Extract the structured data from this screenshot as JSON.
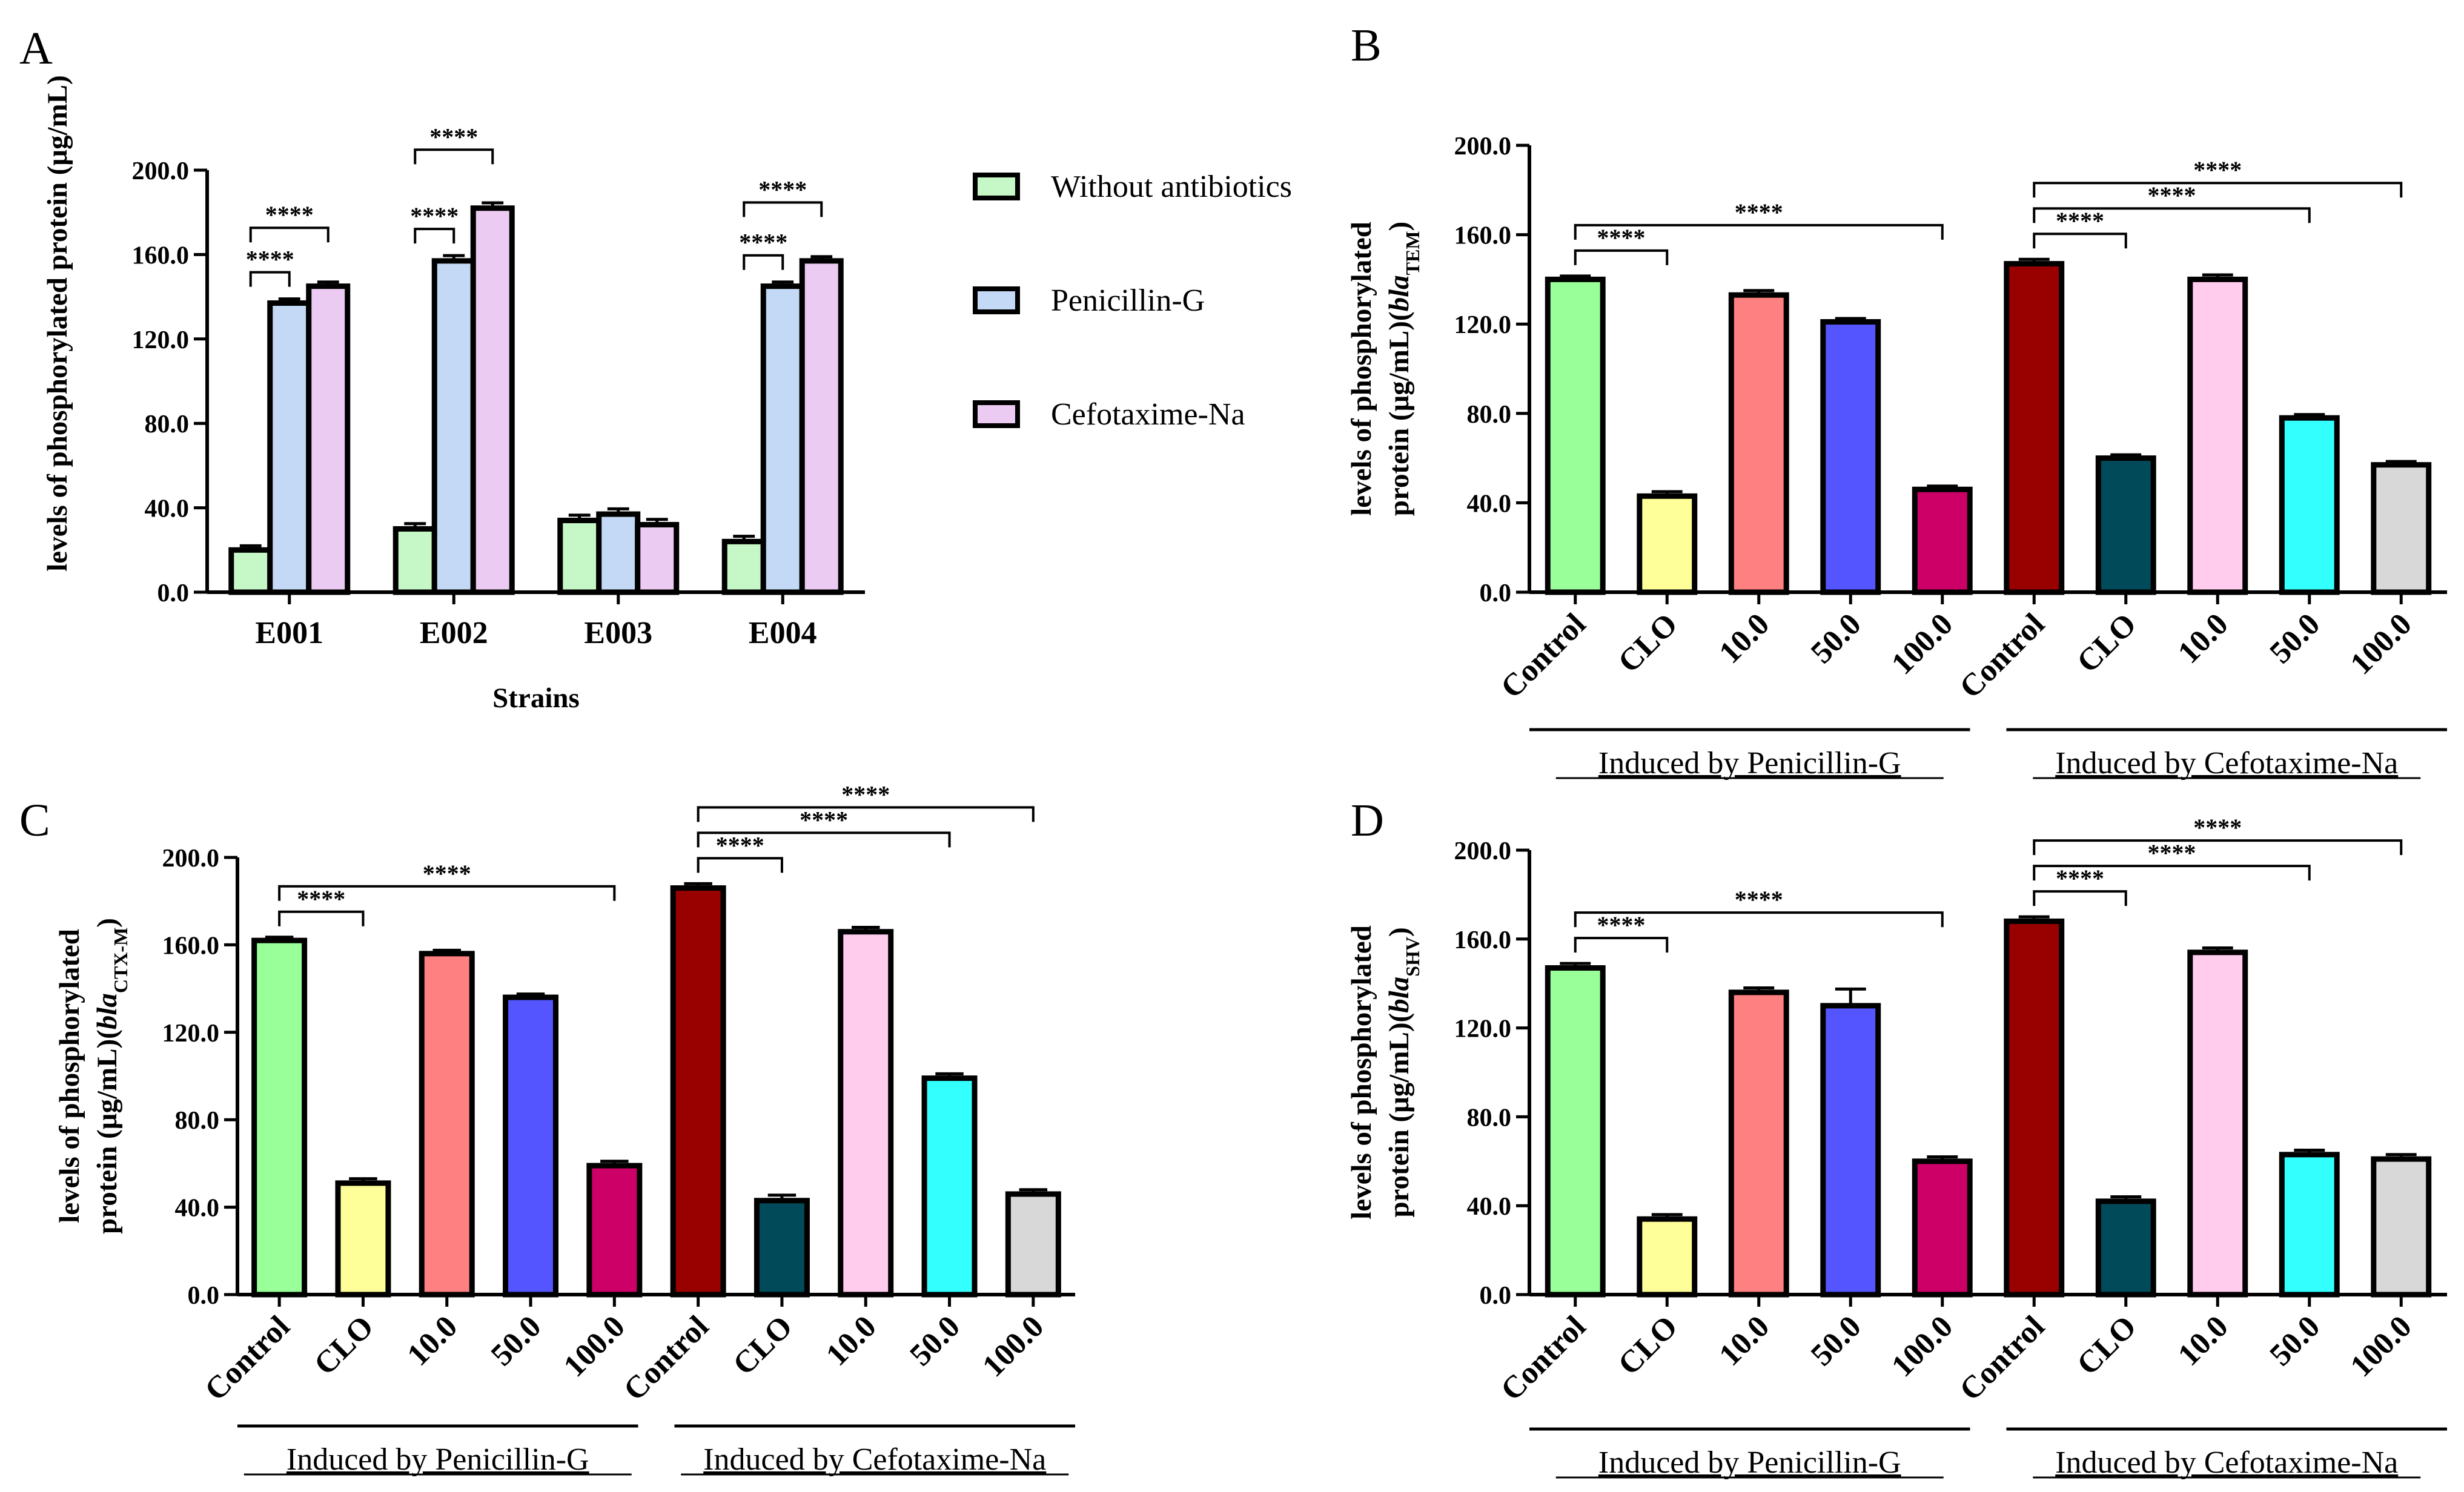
{
  "chart_data": [
    {
      "panel": "A",
      "type": "bar",
      "title": "",
      "ylabel": "levels of phosphorylated protein (μg/mL)",
      "xlabel": "Strains",
      "ylim": [
        0,
        200
      ],
      "yticks": [
        "0.0",
        "40.0",
        "80.0",
        "120.0",
        "160.0",
        "200.0"
      ],
      "categories": [
        "E001",
        "E002",
        "E003",
        "E004"
      ],
      "series": [
        {
          "name": "Without antibiotics",
          "color": "#c6f7c6",
          "values": [
            20,
            30,
            34,
            24
          ],
          "errors": [
            2,
            2.5,
            2.5,
            2.5
          ]
        },
        {
          "name": "Penicillin-G",
          "color": "#c3d9f5",
          "values": [
            137,
            157,
            37,
            145
          ],
          "errors": [
            2,
            2.5,
            2.5,
            2
          ]
        },
        {
          "name": "Cefotaxime-Na",
          "color": "#eccbf2",
          "values": [
            145,
            182,
            32,
            157
          ],
          "errors": [
            2,
            2.5,
            2.5,
            2
          ]
        }
      ],
      "significance": [
        {
          "category": "E001",
          "from": 0,
          "to": 1,
          "label": "****"
        },
        {
          "category": "E001",
          "from": 0,
          "to": 2,
          "label": "****"
        },
        {
          "category": "E002",
          "from": 0,
          "to": 1,
          "label": "****"
        },
        {
          "category": "E002",
          "from": 0,
          "to": 2,
          "label": "****"
        },
        {
          "category": "E004",
          "from": 0,
          "to": 1,
          "label": "****"
        },
        {
          "category": "E004",
          "from": 0,
          "to": 2,
          "label": "****"
        }
      ],
      "legend_position": "right"
    },
    {
      "panel": "B",
      "type": "bar",
      "title": "",
      "ylabel_line1": "levels of phosphorylated",
      "ylabel_line2_prefix": "protein (μg/mL)(",
      "ylabel_italic": "bla",
      "ylabel_subscript": "TEM",
      "ylabel_suffix": ")",
      "ylim": [
        0,
        200
      ],
      "yticks": [
        "0.0",
        "40.0",
        "80.0",
        "120.0",
        "160.0",
        "200.0"
      ],
      "categories": [
        "Control",
        "CLO",
        "10.0",
        "50.0",
        "100.0",
        "Control",
        "CLO",
        "10.0",
        "50.0",
        "100.0"
      ],
      "values": [
        140,
        43,
        133,
        121,
        46,
        147,
        60,
        140,
        78,
        57
      ],
      "errors": [
        1.5,
        2,
        2,
        1.5,
        1.5,
        2,
        1.5,
        2,
        1.5,
        1.5
      ],
      "colors": [
        "#99ff99",
        "#ffff99",
        "#ff8080",
        "#5555ff",
        "#cc0066",
        "#990000",
        "#004a5a",
        "#ffccee",
        "#33ffff",
        "#d8d8d8"
      ],
      "groups": [
        "Induced by Penicillin-G",
        "Induced by Cefotaxime-Na"
      ],
      "significance": [
        {
          "from": 0,
          "to": 1,
          "label": "****"
        },
        {
          "from": 0,
          "to": 4,
          "label": "****"
        },
        {
          "from": 5,
          "to": 6,
          "label": "****"
        },
        {
          "from": 5,
          "to": 8,
          "label": "****"
        },
        {
          "from": 5,
          "to": 9,
          "label": "****"
        }
      ]
    },
    {
      "panel": "C",
      "type": "bar",
      "title": "",
      "ylabel_line1": "levels of phosphorylated",
      "ylabel_line2_prefix": "protein (μg/mL)(",
      "ylabel_italic": "bla",
      "ylabel_subscript": "CTX-M",
      "ylabel_suffix": ")",
      "ylim": [
        0,
        200
      ],
      "yticks": [
        "0.0",
        "40.0",
        "80.0",
        "120.0",
        "160.0",
        "200.0"
      ],
      "categories": [
        "Control",
        "CLO",
        "10.0",
        "50.0",
        "100.0",
        "Control",
        "CLO",
        "10.0",
        "50.0",
        "100.0"
      ],
      "values": [
        162,
        51,
        156,
        136,
        59,
        186,
        43,
        166,
        99,
        46
      ],
      "errors": [
        1.5,
        2,
        1.5,
        1.5,
        2,
        2,
        2.5,
        2,
        2,
        2
      ],
      "colors": [
        "#99ff99",
        "#ffff99",
        "#ff8080",
        "#5555ff",
        "#cc0066",
        "#990000",
        "#004a5a",
        "#ffccee",
        "#33ffff",
        "#d8d8d8"
      ],
      "groups": [
        "Induced by Penicillin-G",
        "Induced by Cefotaxime-Na"
      ],
      "significance": [
        {
          "from": 0,
          "to": 1,
          "label": "****"
        },
        {
          "from": 0,
          "to": 4,
          "label": "****"
        },
        {
          "from": 5,
          "to": 6,
          "label": "****"
        },
        {
          "from": 5,
          "to": 8,
          "label": "****"
        },
        {
          "from": 5,
          "to": 9,
          "label": "****"
        }
      ]
    },
    {
      "panel": "D",
      "type": "bar",
      "title": "",
      "ylabel_line1": "levels of phosphorylated",
      "ylabel_line2_prefix": "protein (μg/mL)(",
      "ylabel_italic": "bla",
      "ylabel_subscript": "SHV",
      "ylabel_suffix": ")",
      "ylim": [
        0,
        200
      ],
      "yticks": [
        "0.0",
        "40.0",
        "80.0",
        "120.0",
        "160.0",
        "200.0"
      ],
      "categories": [
        "Control",
        "CLO",
        "10.0",
        "50.0",
        "100.0",
        "Control",
        "CLO",
        "10.0",
        "50.0",
        "100.0"
      ],
      "values": [
        147,
        34,
        136,
        130,
        60,
        168,
        42,
        154,
        63,
        61
      ],
      "errors": [
        2,
        2,
        2,
        7.5,
        2,
        2,
        2,
        2,
        2,
        2
      ],
      "colors": [
        "#99ff99",
        "#ffff99",
        "#ff8080",
        "#5555ff",
        "#cc0066",
        "#990000",
        "#004a5a",
        "#ffccee",
        "#33ffff",
        "#d8d8d8"
      ],
      "groups": [
        "Induced by Penicillin-G",
        "Induced by Cefotaxime-Na"
      ],
      "significance": [
        {
          "from": 0,
          "to": 1,
          "label": "****"
        },
        {
          "from": 0,
          "to": 4,
          "label": "****"
        },
        {
          "from": 5,
          "to": 6,
          "label": "****"
        },
        {
          "from": 5,
          "to": 8,
          "label": "****"
        },
        {
          "from": 5,
          "to": 9,
          "label": "****"
        }
      ]
    }
  ]
}
